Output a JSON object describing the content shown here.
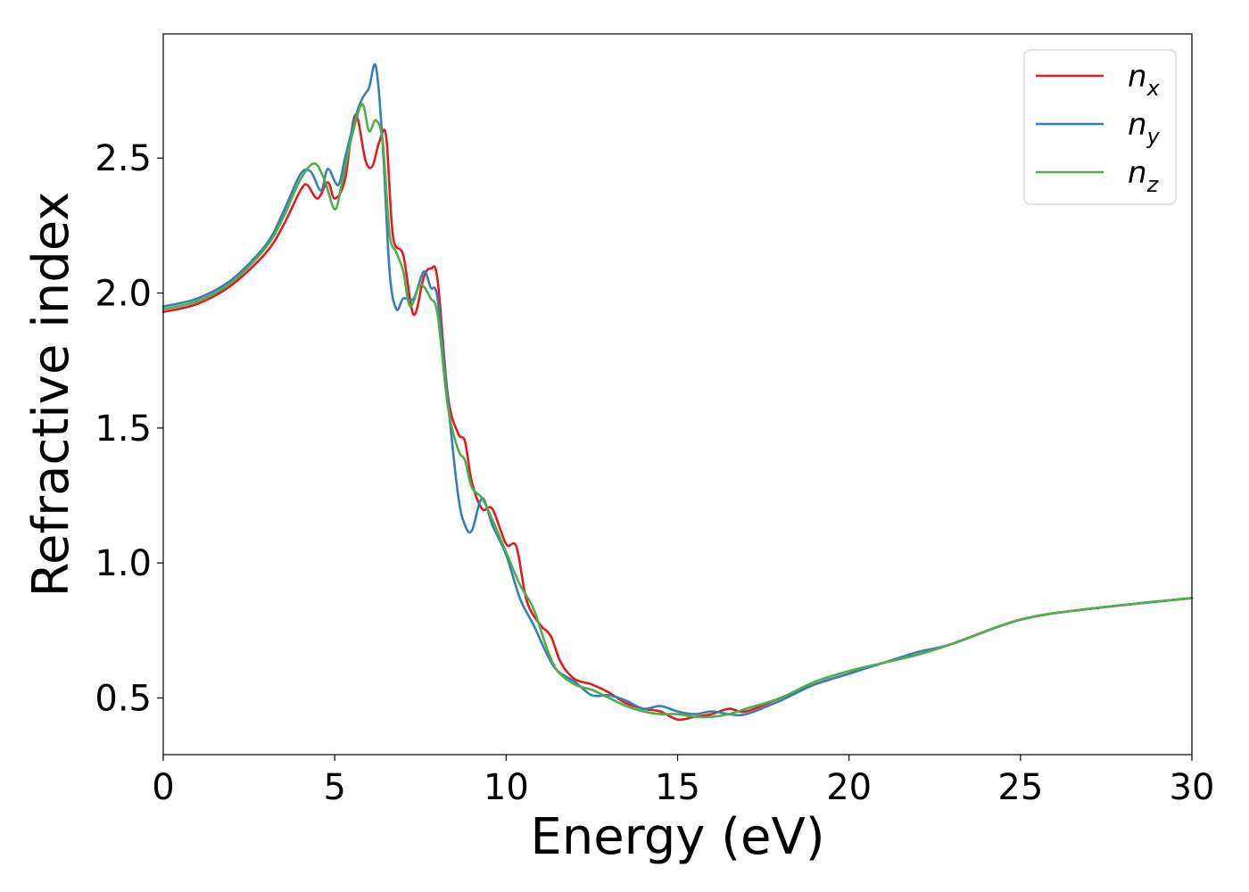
{
  "chart_data": {
    "type": "line",
    "xlabel": "Energy (eV)",
    "ylabel": "Refractive index",
    "xlim": [
      0,
      30
    ],
    "ylim": [
      0.29,
      2.96
    ],
    "xticks": [
      "0",
      "5",
      "10",
      "15",
      "20",
      "25",
      "30"
    ],
    "yticks": [
      "0.5",
      "1.0",
      "1.5",
      "2.0",
      "2.5"
    ],
    "grid": false,
    "legend_position": "top-right",
    "series": [
      {
        "name": "n_x",
        "legend_base": "n",
        "legend_sub": "x",
        "color": "#e41a1c",
        "x": [
          0,
          1,
          2,
          3,
          3.5,
          4,
          4.2,
          4.5,
          4.8,
          5,
          5.3,
          5.6,
          5.9,
          6.1,
          6.3,
          6.5,
          6.7,
          7,
          7.3,
          7.6,
          7.8,
          8,
          8.3,
          8.6,
          8.8,
          9,
          9.3,
          9.6,
          10,
          10.3,
          10.6,
          11,
          11.3,
          11.6,
          12,
          12.5,
          13,
          13.5,
          14,
          14.5,
          15,
          15.5,
          16,
          16.5,
          17,
          18,
          19,
          20,
          21,
          22,
          23,
          25,
          27,
          30
        ],
        "y": [
          1.93,
          1.96,
          2.03,
          2.15,
          2.25,
          2.38,
          2.4,
          2.35,
          2.41,
          2.35,
          2.42,
          2.66,
          2.49,
          2.47,
          2.56,
          2.58,
          2.21,
          2.14,
          1.92,
          2.06,
          2.09,
          2.05,
          1.62,
          1.48,
          1.45,
          1.3,
          1.2,
          1.2,
          1.07,
          1.06,
          0.86,
          0.77,
          0.73,
          0.63,
          0.57,
          0.55,
          0.52,
          0.48,
          0.46,
          0.45,
          0.42,
          0.43,
          0.44,
          0.46,
          0.45,
          0.5,
          0.55,
          0.59,
          0.63,
          0.66,
          0.7,
          0.79,
          0.83,
          0.87
        ]
      },
      {
        "name": "n_y",
        "legend_base": "n",
        "legend_sub": "y",
        "color": "#377eb8",
        "x": [
          0,
          1,
          2,
          3,
          3.5,
          4,
          4.3,
          4.6,
          4.8,
          5.1,
          5.3,
          5.6,
          5.8,
          6,
          6.2,
          6.4,
          6.6,
          6.8,
          7,
          7.3,
          7.6,
          7.8,
          8,
          8.3,
          8.6,
          8.8,
          9,
          9.3,
          9.6,
          10,
          10.4,
          10.8,
          11.2,
          11.5,
          12,
          12.5,
          13,
          13.5,
          14,
          14.5,
          15,
          15.5,
          16,
          16.5,
          17,
          18,
          19,
          20,
          21,
          22,
          23,
          25,
          27,
          30
        ],
        "y": [
          1.95,
          1.98,
          2.05,
          2.18,
          2.3,
          2.44,
          2.45,
          2.38,
          2.46,
          2.4,
          2.5,
          2.65,
          2.72,
          2.76,
          2.84,
          2.55,
          2.08,
          1.94,
          1.98,
          1.98,
          2.08,
          2.02,
          1.98,
          1.6,
          1.25,
          1.14,
          1.12,
          1.24,
          1.14,
          1.03,
          0.87,
          0.77,
          0.66,
          0.6,
          0.56,
          0.51,
          0.51,
          0.49,
          0.46,
          0.47,
          0.45,
          0.44,
          0.45,
          0.44,
          0.44,
          0.49,
          0.55,
          0.59,
          0.63,
          0.67,
          0.7,
          0.79,
          0.83,
          0.87
        ]
      },
      {
        "name": "n_z",
        "legend_base": "n",
        "legend_sub": "z",
        "color": "#4daf4a",
        "x": [
          0,
          1,
          2,
          3,
          3.5,
          4,
          4.4,
          4.7,
          5,
          5.2,
          5.5,
          5.8,
          6,
          6.2,
          6.4,
          6.6,
          6.8,
          7,
          7.2,
          7.5,
          7.8,
          8,
          8.3,
          8.6,
          8.8,
          9,
          9.3,
          9.6,
          10,
          10.4,
          10.8,
          11.2,
          11.5,
          12,
          12.5,
          13,
          13.5,
          14,
          14.5,
          15,
          15.5,
          16,
          16.5,
          17,
          18,
          19,
          20,
          21,
          22,
          23,
          25,
          27,
          30
        ],
        "y": [
          1.94,
          1.97,
          2.04,
          2.17,
          2.28,
          2.42,
          2.48,
          2.42,
          2.31,
          2.4,
          2.58,
          2.7,
          2.6,
          2.64,
          2.56,
          2.22,
          2.15,
          2.08,
          1.95,
          2.03,
          1.98,
          1.92,
          1.58,
          1.42,
          1.38,
          1.28,
          1.24,
          1.16,
          1.04,
          0.92,
          0.83,
          0.68,
          0.6,
          0.55,
          0.53,
          0.5,
          0.47,
          0.45,
          0.44,
          0.44,
          0.43,
          0.43,
          0.44,
          0.46,
          0.5,
          0.56,
          0.6,
          0.63,
          0.66,
          0.7,
          0.79,
          0.83,
          0.87
        ]
      }
    ]
  }
}
